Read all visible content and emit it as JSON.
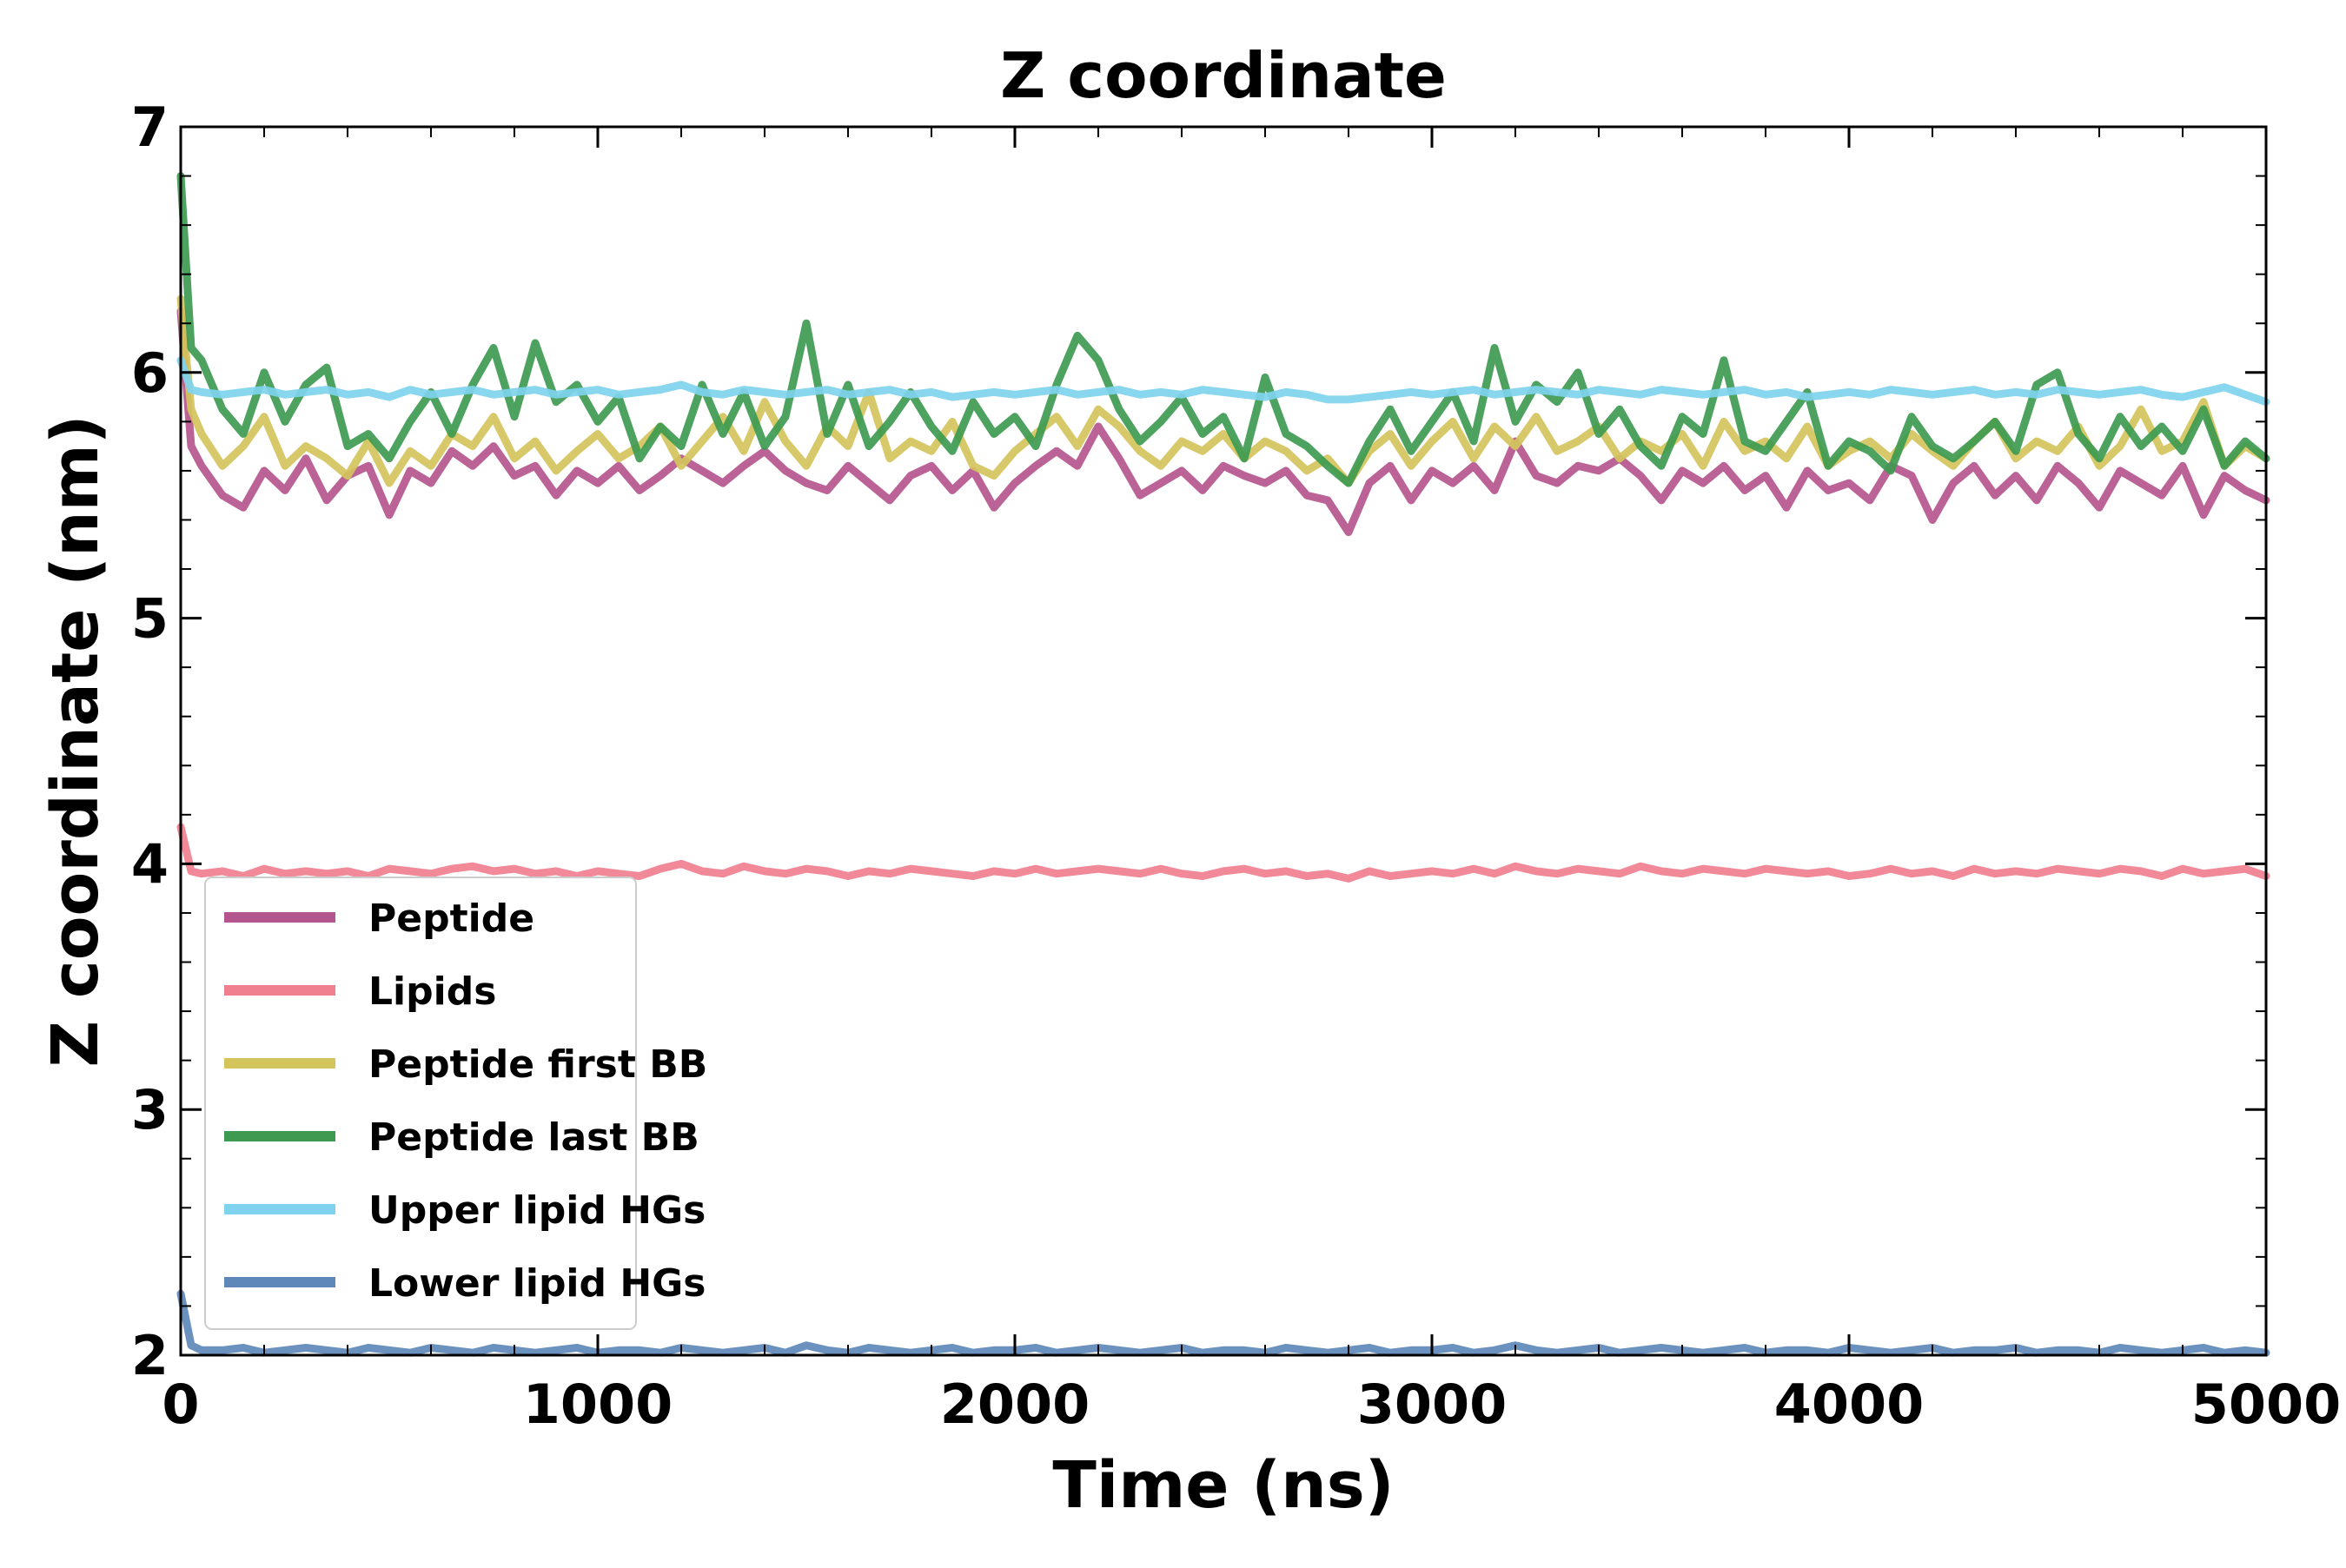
{
  "chart_data": {
    "type": "line",
    "title": "Z coordinate",
    "xlabel": "Time (ns)",
    "ylabel": "Z coordinate (nm)",
    "xlim": [
      0,
      5000
    ],
    "ylim": [
      2,
      7
    ],
    "x_ticks": [
      "0",
      "1000",
      "2000",
      "3000",
      "4000",
      "5000"
    ],
    "y_ticks": [
      "2",
      "3",
      "4",
      "5",
      "6",
      "7"
    ],
    "grid": false,
    "legend_position": "lower-left",
    "x": [
      0,
      25,
      50,
      100,
      150,
      200,
      250,
      300,
      350,
      400,
      450,
      500,
      550,
      600,
      650,
      700,
      750,
      800,
      850,
      900,
      950,
      1000,
      1050,
      1100,
      1150,
      1200,
      1250,
      1300,
      1350,
      1400,
      1450,
      1500,
      1550,
      1600,
      1650,
      1700,
      1750,
      1800,
      1850,
      1900,
      1950,
      2000,
      2050,
      2100,
      2150,
      2200,
      2250,
      2300,
      2350,
      2400,
      2450,
      2500,
      2550,
      2600,
      2650,
      2700,
      2750,
      2800,
      2850,
      2900,
      2950,
      3000,
      3050,
      3100,
      3150,
      3200,
      3250,
      3300,
      3350,
      3400,
      3450,
      3500,
      3550,
      3600,
      3650,
      3700,
      3750,
      3800,
      3850,
      3900,
      3950,
      4000,
      4050,
      4100,
      4150,
      4200,
      4250,
      4300,
      4350,
      4400,
      4450,
      4500,
      4550,
      4600,
      4650,
      4700,
      4750,
      4800,
      4850,
      4900,
      4950,
      5000
    ],
    "series": [
      {
        "name": "Peptide",
        "color": "#b5558d",
        "values": [
          6.25,
          5.7,
          5.62,
          5.5,
          5.45,
          5.6,
          5.52,
          5.65,
          5.48,
          5.58,
          5.62,
          5.42,
          5.6,
          5.55,
          5.68,
          5.62,
          5.7,
          5.58,
          5.62,
          5.5,
          5.6,
          5.55,
          5.62,
          5.52,
          5.58,
          5.65,
          5.6,
          5.55,
          5.62,
          5.68,
          5.6,
          5.55,
          5.52,
          5.62,
          5.55,
          5.48,
          5.58,
          5.62,
          5.52,
          5.6,
          5.45,
          5.55,
          5.62,
          5.68,
          5.62,
          5.78,
          5.65,
          5.5,
          5.55,
          5.6,
          5.52,
          5.62,
          5.58,
          5.55,
          5.6,
          5.5,
          5.48,
          5.35,
          5.55,
          5.62,
          5.48,
          5.6,
          5.55,
          5.62,
          5.52,
          5.72,
          5.58,
          5.55,
          5.62,
          5.6,
          5.65,
          5.58,
          5.48,
          5.6,
          5.55,
          5.62,
          5.52,
          5.58,
          5.45,
          5.6,
          5.52,
          5.55,
          5.48,
          5.62,
          5.58,
          5.4,
          5.55,
          5.62,
          5.5,
          5.58,
          5.48,
          5.62,
          5.55,
          5.45,
          5.6,
          5.55,
          5.5,
          5.62,
          5.42,
          5.58,
          5.52,
          5.48
        ]
      },
      {
        "name": "Lipids",
        "color": "#f07f8f",
        "values": [
          4.15,
          3.97,
          3.96,
          3.97,
          3.95,
          3.98,
          3.96,
          3.97,
          3.96,
          3.97,
          3.95,
          3.98,
          3.97,
          3.96,
          3.98,
          3.99,
          3.97,
          3.98,
          3.96,
          3.97,
          3.95,
          3.97,
          3.96,
          3.95,
          3.98,
          4.0,
          3.97,
          3.96,
          3.99,
          3.97,
          3.96,
          3.98,
          3.97,
          3.95,
          3.97,
          3.96,
          3.98,
          3.97,
          3.96,
          3.95,
          3.97,
          3.96,
          3.98,
          3.96,
          3.97,
          3.98,
          3.97,
          3.96,
          3.98,
          3.96,
          3.95,
          3.97,
          3.98,
          3.96,
          3.97,
          3.95,
          3.96,
          3.94,
          3.97,
          3.95,
          3.96,
          3.97,
          3.96,
          3.98,
          3.96,
          3.99,
          3.97,
          3.96,
          3.98,
          3.97,
          3.96,
          3.99,
          3.97,
          3.96,
          3.98,
          3.97,
          3.96,
          3.98,
          3.97,
          3.96,
          3.97,
          3.95,
          3.96,
          3.98,
          3.96,
          3.97,
          3.95,
          3.98,
          3.96,
          3.97,
          3.96,
          3.98,
          3.97,
          3.96,
          3.98,
          3.97,
          3.95,
          3.98,
          3.96,
          3.97,
          3.98,
          3.95
        ]
      },
      {
        "name": "Peptide first BB",
        "color": "#d4c45c",
        "values": [
          6.3,
          5.85,
          5.75,
          5.62,
          5.7,
          5.82,
          5.62,
          5.7,
          5.65,
          5.58,
          5.72,
          5.55,
          5.68,
          5.62,
          5.75,
          5.7,
          5.82,
          5.65,
          5.72,
          5.6,
          5.68,
          5.75,
          5.65,
          5.7,
          5.78,
          5.62,
          5.72,
          5.82,
          5.68,
          5.88,
          5.72,
          5.62,
          5.78,
          5.7,
          5.92,
          5.65,
          5.72,
          5.68,
          5.8,
          5.62,
          5.58,
          5.68,
          5.75,
          5.82,
          5.7,
          5.85,
          5.78,
          5.68,
          5.62,
          5.72,
          5.68,
          5.75,
          5.65,
          5.72,
          5.68,
          5.6,
          5.65,
          5.55,
          5.68,
          5.75,
          5.62,
          5.72,
          5.8,
          5.65,
          5.78,
          5.7,
          5.82,
          5.68,
          5.72,
          5.78,
          5.65,
          5.72,
          5.68,
          5.75,
          5.62,
          5.8,
          5.68,
          5.72,
          5.65,
          5.78,
          5.62,
          5.68,
          5.72,
          5.65,
          5.75,
          5.68,
          5.62,
          5.72,
          5.8,
          5.65,
          5.72,
          5.68,
          5.78,
          5.62,
          5.7,
          5.85,
          5.68,
          5.72,
          5.88,
          5.62,
          5.7,
          5.65
        ]
      },
      {
        "name": "Peptide last BB",
        "color": "#3d9a50",
        "values": [
          6.8,
          6.1,
          6.05,
          5.85,
          5.75,
          6.0,
          5.8,
          5.95,
          6.02,
          5.7,
          5.75,
          5.65,
          5.8,
          5.92,
          5.75,
          5.95,
          6.1,
          5.82,
          6.12,
          5.88,
          5.95,
          5.8,
          5.9,
          5.65,
          5.78,
          5.7,
          5.95,
          5.75,
          5.92,
          5.7,
          5.82,
          6.2,
          5.75,
          5.95,
          5.7,
          5.8,
          5.92,
          5.78,
          5.68,
          5.88,
          5.75,
          5.82,
          5.7,
          5.95,
          6.15,
          6.05,
          5.85,
          5.72,
          5.8,
          5.9,
          5.75,
          5.82,
          5.65,
          5.98,
          5.75,
          5.7,
          5.62,
          5.55,
          5.72,
          5.85,
          5.68,
          5.8,
          5.92,
          5.72,
          6.1,
          5.8,
          5.95,
          5.88,
          6.0,
          5.75,
          5.85,
          5.7,
          5.62,
          5.82,
          5.75,
          6.05,
          5.72,
          5.68,
          5.8,
          5.92,
          5.62,
          5.72,
          5.68,
          5.6,
          5.82,
          5.7,
          5.65,
          5.72,
          5.8,
          5.68,
          5.95,
          6.0,
          5.75,
          5.65,
          5.82,
          5.7,
          5.78,
          5.68,
          5.85,
          5.62,
          5.72,
          5.65
        ]
      },
      {
        "name": "Upper lipid HGs",
        "color": "#7fd3ee",
        "values": [
          6.05,
          5.93,
          5.92,
          5.91,
          5.92,
          5.93,
          5.91,
          5.92,
          5.93,
          5.91,
          5.92,
          5.9,
          5.93,
          5.91,
          5.92,
          5.93,
          5.91,
          5.92,
          5.93,
          5.91,
          5.92,
          5.93,
          5.91,
          5.92,
          5.93,
          5.95,
          5.92,
          5.91,
          5.93,
          5.92,
          5.91,
          5.92,
          5.93,
          5.91,
          5.92,
          5.93,
          5.91,
          5.92,
          5.9,
          5.91,
          5.92,
          5.91,
          5.92,
          5.93,
          5.91,
          5.92,
          5.93,
          5.91,
          5.92,
          5.91,
          5.93,
          5.92,
          5.91,
          5.9,
          5.92,
          5.91,
          5.89,
          5.89,
          5.9,
          5.91,
          5.92,
          5.91,
          5.92,
          5.93,
          5.91,
          5.92,
          5.93,
          5.92,
          5.91,
          5.93,
          5.92,
          5.91,
          5.93,
          5.92,
          5.91,
          5.92,
          5.93,
          5.91,
          5.92,
          5.9,
          5.91,
          5.92,
          5.91,
          5.93,
          5.92,
          5.91,
          5.92,
          5.93,
          5.91,
          5.92,
          5.91,
          5.93,
          5.92,
          5.91,
          5.92,
          5.93,
          5.91,
          5.9,
          5.92,
          5.94,
          5.91,
          5.88
        ]
      },
      {
        "name": "Lower lipid HGs",
        "color": "#5e88b8",
        "values": [
          2.25,
          2.04,
          2.02,
          2.02,
          2.03,
          2.01,
          2.02,
          2.03,
          2.02,
          2.01,
          2.03,
          2.02,
          2.01,
          2.03,
          2.02,
          2.01,
          2.03,
          2.02,
          2.01,
          2.02,
          2.03,
          2.01,
          2.02,
          2.02,
          2.01,
          2.03,
          2.02,
          2.01,
          2.02,
          2.03,
          2.01,
          2.04,
          2.02,
          2.01,
          2.03,
          2.02,
          2.01,
          2.02,
          2.03,
          2.01,
          2.02,
          2.02,
          2.03,
          2.01,
          2.02,
          2.03,
          2.02,
          2.01,
          2.02,
          2.03,
          2.01,
          2.02,
          2.02,
          2.01,
          2.03,
          2.02,
          2.01,
          2.02,
          2.03,
          2.01,
          2.02,
          2.02,
          2.03,
          2.01,
          2.02,
          2.04,
          2.02,
          2.01,
          2.02,
          2.03,
          2.01,
          2.02,
          2.03,
          2.02,
          2.01,
          2.02,
          2.03,
          2.01,
          2.02,
          2.02,
          2.01,
          2.03,
          2.02,
          2.01,
          2.02,
          2.03,
          2.01,
          2.02,
          2.02,
          2.03,
          2.01,
          2.02,
          2.02,
          2.01,
          2.03,
          2.02,
          2.01,
          2.02,
          2.03,
          2.01,
          2.02,
          2.01
        ]
      }
    ]
  }
}
